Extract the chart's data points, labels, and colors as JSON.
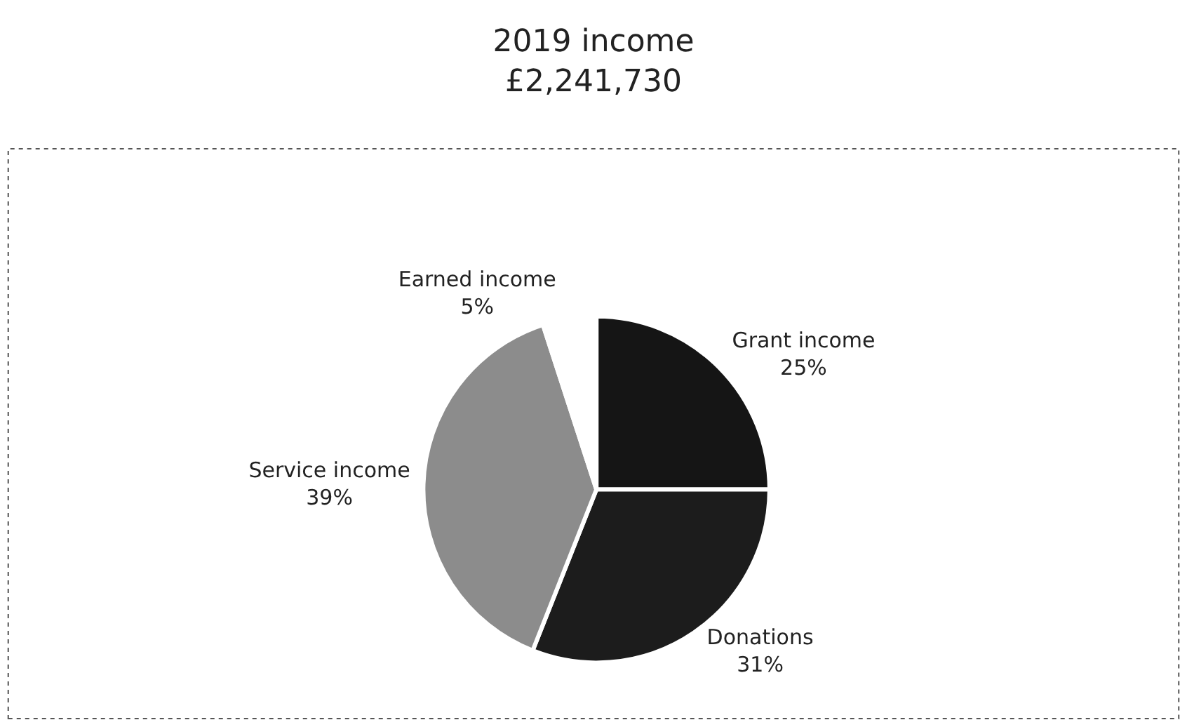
{
  "chart_data": {
    "type": "pie",
    "title": "2019 income\n£2,241,730",
    "categories": [
      "Grant income",
      "Donations",
      "Service income",
      "Earned income"
    ],
    "values": [
      25,
      31,
      39,
      5
    ],
    "value_labels": [
      "25%",
      "31%",
      "39%",
      "5%"
    ],
    "colors": [
      "#151515",
      "#1c1c1c",
      "#8c8c8c",
      "#ffffff"
    ],
    "legend": false
  }
}
